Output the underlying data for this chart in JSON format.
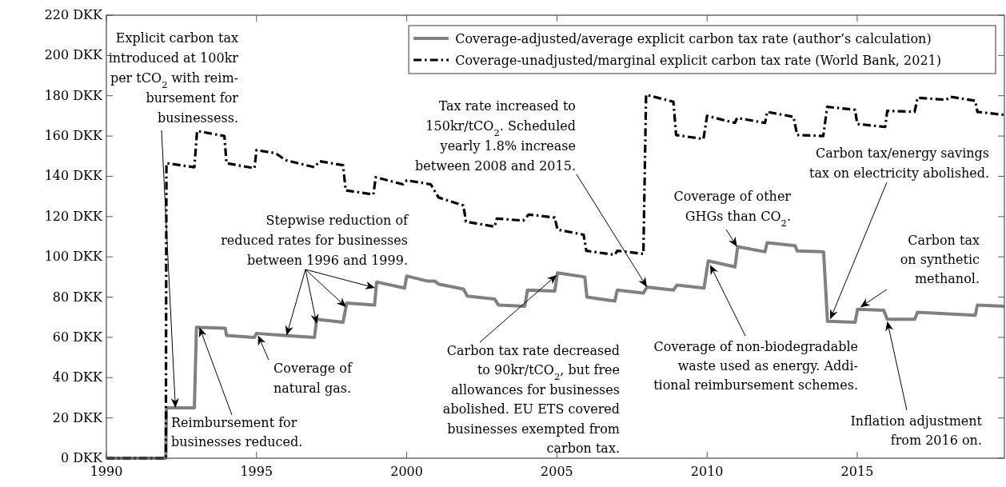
{
  "chart_data": {
    "type": "line",
    "xlim": [
      1990,
      2019.9
    ],
    "xticks": [
      1990,
      1995,
      2000,
      2005,
      2010,
      2015
    ],
    "ylim": [
      0,
      220
    ],
    "yticks": [
      {
        "value": 0,
        "label": "0 DKK"
      },
      {
        "value": 20,
        "label": "20 DKK"
      },
      {
        "value": 40,
        "label": "40 DKK"
      },
      {
        "value": 60,
        "label": "60 DKK"
      },
      {
        "value": 80,
        "label": "80 DKK"
      },
      {
        "value": 100,
        "label": "100 DKK"
      },
      {
        "value": 120,
        "label": "120 DKK"
      },
      {
        "value": 140,
        "label": "140 DKK"
      },
      {
        "value": 160,
        "label": "160 DKK"
      },
      {
        "value": 180,
        "label": "180 DKK"
      },
      {
        "value": 200,
        "label": "200 DKK"
      },
      {
        "value": 220,
        "label": "220 DKK"
      }
    ],
    "grid": false,
    "legend": "top right",
    "marker": "none",
    "series": [
      {
        "name": "Coverage-adjusted/average explicit carbon tax rate (author’s calculation)",
        "color": "#808080",
        "line_style": "solid",
        "x": [
          1990,
          1991.98,
          1992,
          1992.93,
          1993,
          1993.96,
          1994.0,
          1994.93,
          1995.0,
          1995.93,
          1996.93,
          1997.0,
          1997.88,
          1998.0,
          1998.93,
          1999.0,
          1999.93,
          2000.0,
          2000.67,
          2000.93,
          2001.06,
          2001.89,
          2002.02,
          2002.93,
          2003.06,
          2003.93,
          2004.02,
          2004.93,
          2005.02,
          2005.93,
          2006.0,
          2006.93,
          2007.01,
          2007.88,
          2008.0,
          2008.88,
          2009.0,
          2009.9,
          2010.04,
          2010.93,
          2011.02,
          2011.93,
          2012.0,
          2012.93,
          2013.0,
          2013.88,
          2014.01,
          2014.93,
          2015.01,
          2015.88,
          2016.0,
          2016.91,
          2017.01,
          2018.93,
          2019.0,
          2019.9
        ],
        "values": [
          0,
          0,
          25,
          25,
          65,
          64.5,
          61,
          60,
          62,
          61,
          60,
          69,
          67.5,
          77,
          76,
          87.5,
          84.5,
          90.5,
          88,
          88,
          86.5,
          84,
          80.5,
          79,
          76,
          75.5,
          83.5,
          83,
          92,
          90,
          80,
          78,
          83.5,
          82,
          85,
          83.5,
          86,
          84.5,
          98,
          95,
          105,
          102.5,
          107,
          105.5,
          103,
          102.5,
          68,
          67.5,
          74,
          73.5,
          69,
          69,
          72.5,
          71,
          76,
          75.5
        ]
      },
      {
        "name": "Coverage-unadjusted/marginal explicit carbon tax rate (World Bank, 2021)",
        "color": "#000000",
        "line_style": "dashed",
        "x": [
          1990,
          1991.98,
          1992.0,
          1992.93,
          1993.02,
          1993.93,
          1994.0,
          1994.93,
          1995.0,
          1995.63,
          1995.97,
          1996.93,
          1997.1,
          1997.88,
          1997.97,
          1998.89,
          1998.97,
          1999.88,
          2000.0,
          2000.8,
          2001.06,
          2001.89,
          2001.97,
          2002.93,
          2003.0,
          2003.88,
          2004.06,
          2004.93,
          2005.02,
          2005.89,
          2005.98,
          2006.93,
          2007.01,
          2007.88,
          2007.97,
          2008.88,
          2008.97,
          2009.88,
          2010.0,
          2010.93,
          2011.0,
          2011.93,
          2012.0,
          2012.88,
          2013.0,
          2013.87,
          2014.0,
          2014.93,
          2015.0,
          2015.93,
          2016.0,
          2016.91,
          2017.01,
          2017.97,
          2018.1,
          2018.93,
          2019.0,
          2019.9
        ],
        "values": [
          0,
          0,
          146.5,
          144.5,
          162.5,
          160,
          146.5,
          144,
          153,
          151.5,
          148,
          144.5,
          147.5,
          145.5,
          133,
          131,
          139.5,
          136,
          138,
          136,
          129.5,
          125.5,
          117.5,
          115,
          119,
          118,
          121,
          119.5,
          113.5,
          111,
          103,
          101,
          103,
          101.5,
          180.5,
          177,
          160.5,
          158.5,
          170,
          166.5,
          169,
          166.5,
          172,
          169.5,
          160.5,
          160,
          174.5,
          173,
          166,
          164.5,
          172.5,
          172,
          179,
          178,
          179.5,
          177.5,
          172,
          170.5
        ]
      }
    ],
    "annotations": [
      {
        "text": "Explicit carbon tax\nintroduced at 100kr\nper tCO$_{2}$ with reim-\nbursement for\nbusinessess.",
        "x": 1992.3,
        "y": 25
      },
      {
        "text": "Reimbursement for\nbusinesses reduced.",
        "x": 1993.1,
        "y": 65
      },
      {
        "text": "Coverage of\nnatural gas.",
        "x": 1995.05,
        "y": 61
      },
      {
        "text": "Stepwise reduction of\nreduced rates for businesses\nbetween 1996 and 1999.",
        "x": 1996,
        "y": 61
      },
      {
        "text": "Carbon tax rate decreased\nto 90kr/tCO$_{2}$, but free\nallowances for businesses\nabolished. EU ETS covered\nbusinesses exempted from\ncarbon tax.",
        "x": 2005,
        "y": 91
      },
      {
        "text": "Tax rate increased to\n150kr/tCO$_{2}$. Scheduled\nyearly 1.8% increase\nbetween 2008 and 2015.",
        "x": 2008,
        "y": 85
      },
      {
        "text": "Coverage of non-biodegradable\nwaste used as energy. Addi-\ntional reimbursement schemes.",
        "x": 2010.1,
        "y": 96
      },
      {
        "text": "Coverage of other\nGHGs than CO$_{2}$.",
        "x": 2011,
        "y": 105
      },
      {
        "text": "Carbon tax/energy savings\ntax on electricity abolished.",
        "x": 2014.1,
        "y": 69
      },
      {
        "text": "Carbon tax\non synthetic\nmethanol.",
        "x": 2015.1,
        "y": 75
      },
      {
        "text": "Inflation adjustment\nfrom 2016 on.",
        "x": 2016,
        "y": 68
      }
    ]
  }
}
